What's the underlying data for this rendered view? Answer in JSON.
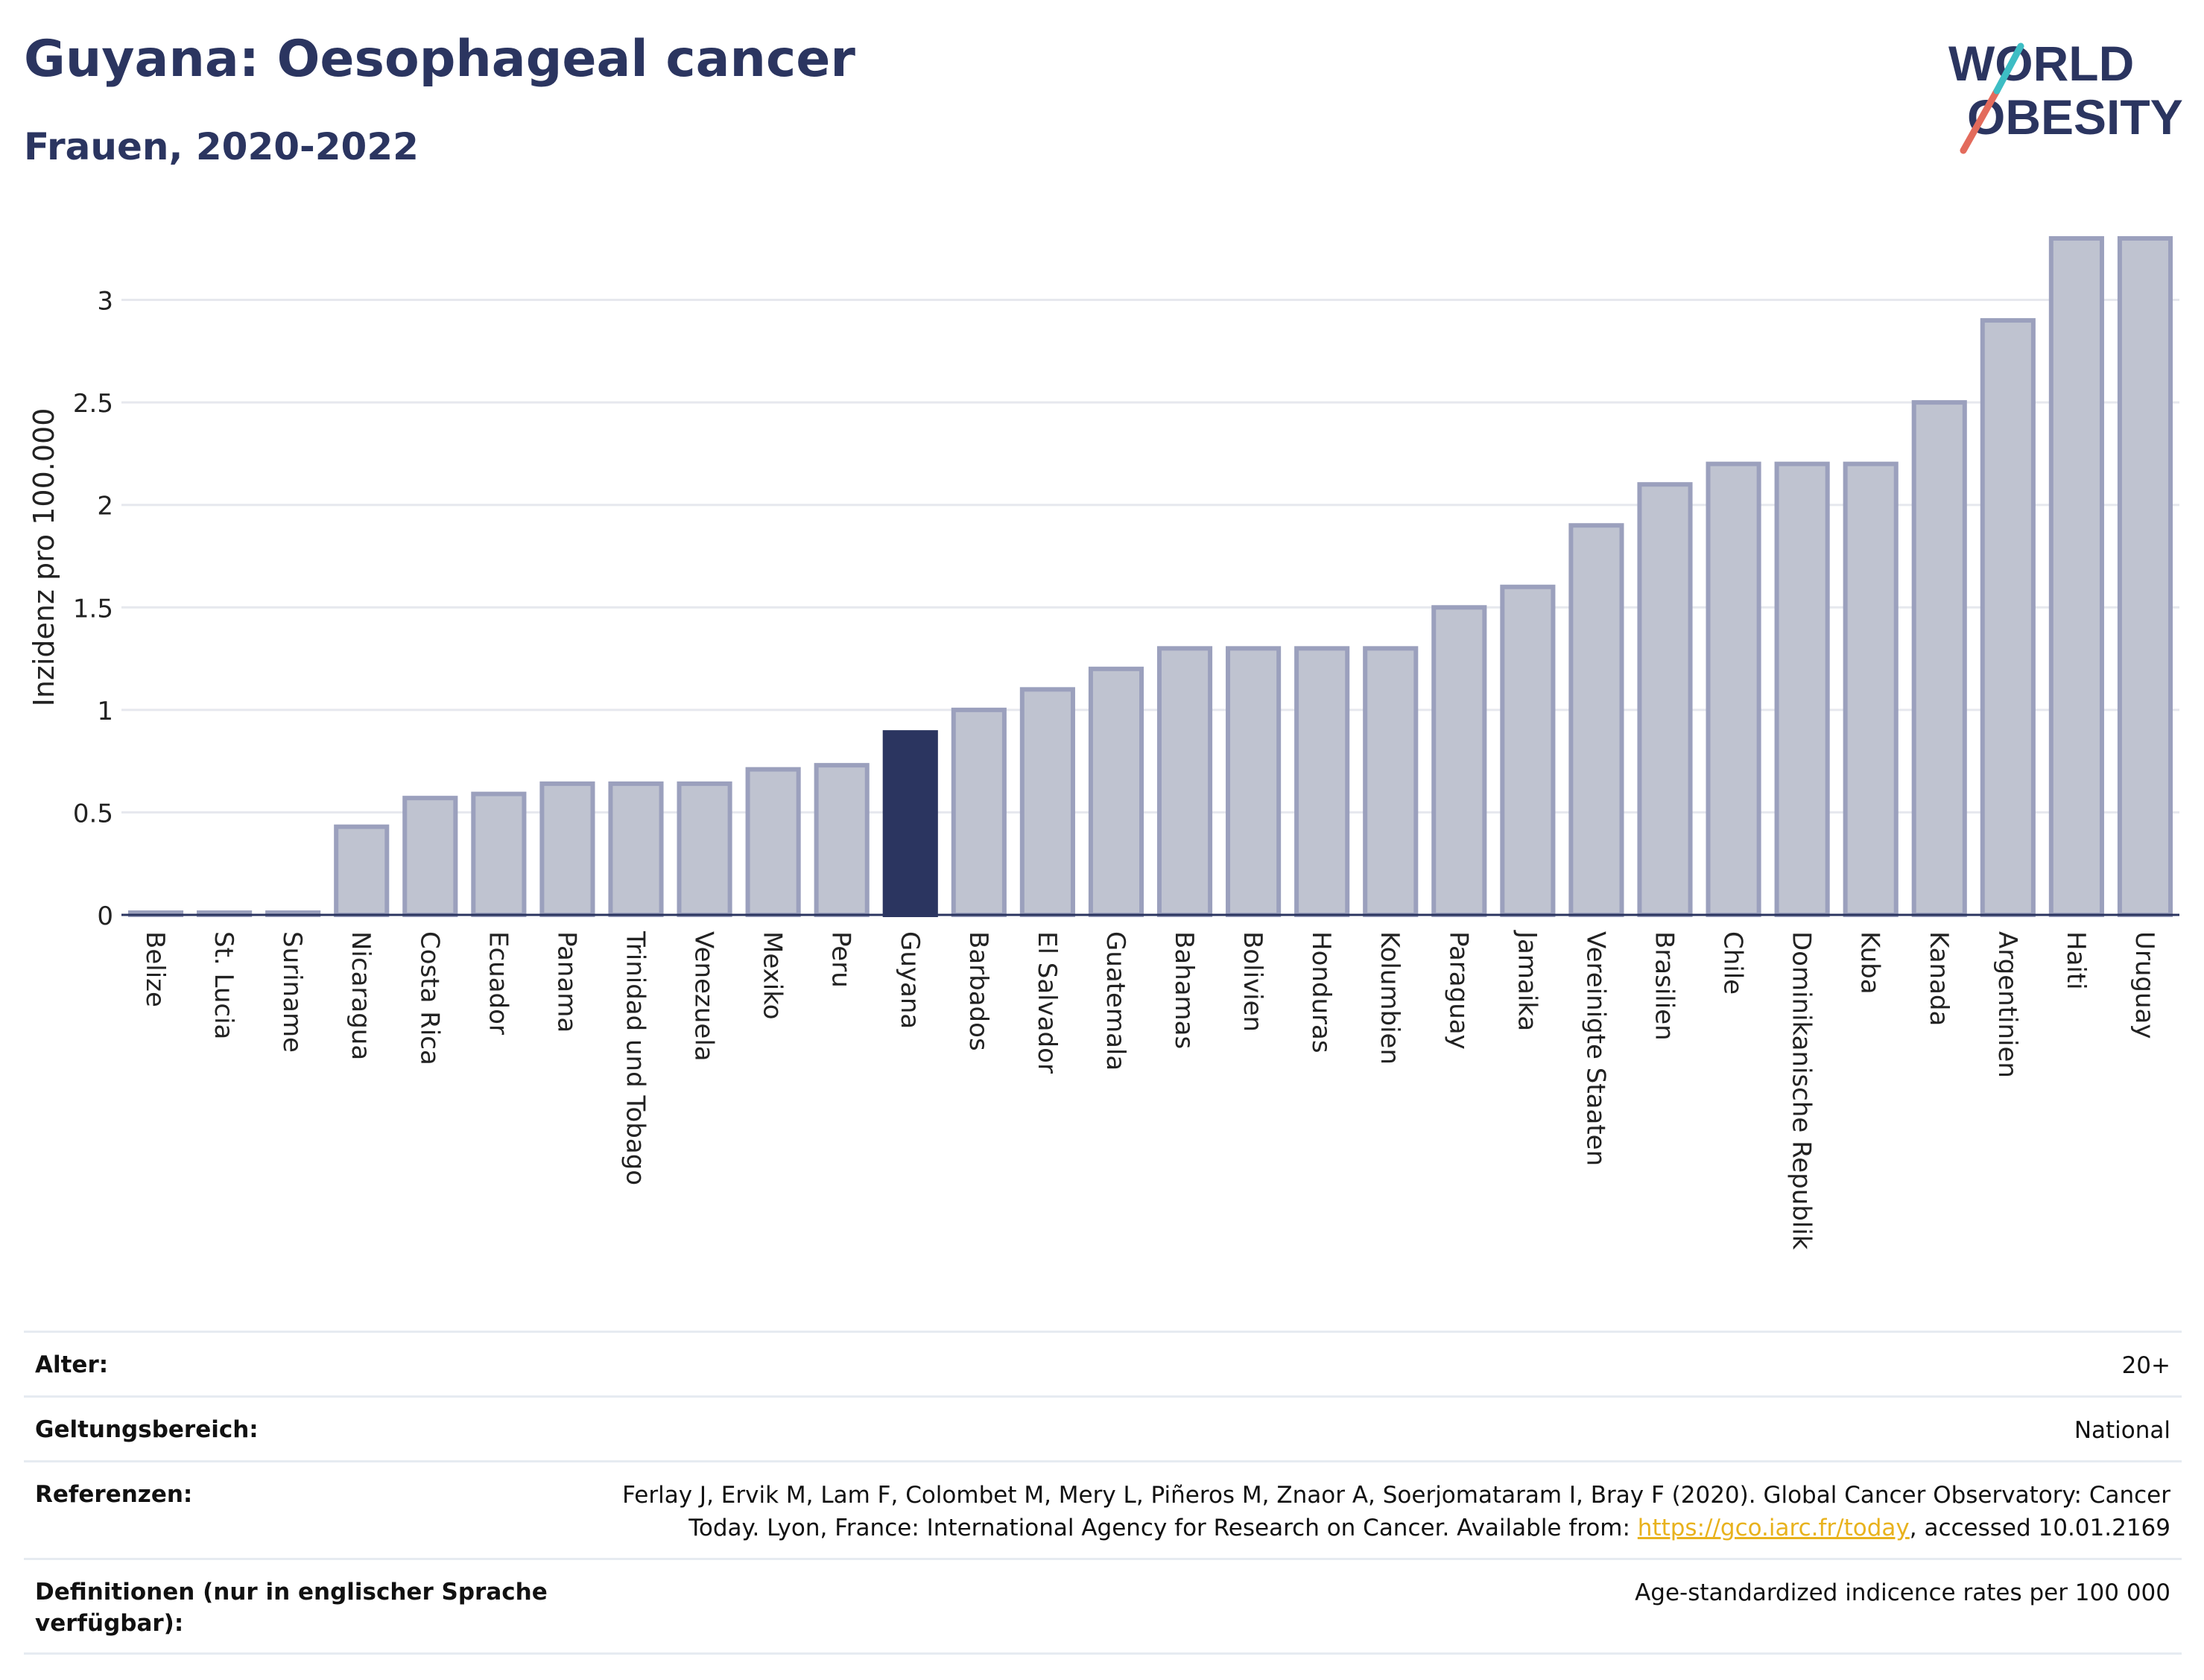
{
  "header": {
    "title": "Guyana: Oesophageal cancer",
    "subtitle": "Frauen, 2020-2022"
  },
  "logo": {
    "line1": "WORLD",
    "line2": "OBESITY"
  },
  "colors": {
    "bar": "#bfc3d0",
    "bar_border": "#9ba0bd",
    "highlight": "#2b3560",
    "grid": "#e6e8ee",
    "text": "#2b3560",
    "logo_teal": "#3dbdc4",
    "logo_red": "#e36b5c",
    "link": "#e8b21d"
  },
  "chart_data": {
    "type": "bar",
    "ylabel": "Inzidenz pro 100.000",
    "ylim": [
      0,
      3.3
    ],
    "yticks": [
      0,
      0.5,
      1,
      1.5,
      2,
      2.5,
      3
    ],
    "ytick_labels": [
      "0",
      "0.5",
      "1",
      "1.5",
      "2",
      "2.5",
      "3"
    ],
    "highlight": "Guyana",
    "grid": true,
    "categories": [
      "Belize",
      "St. Lucia",
      "Suriname",
      "Nicaragua",
      "Costa Rica",
      "Ecuador",
      "Panama",
      "Trinidad und Tobago",
      "Venezuela",
      "Mexiko",
      "Peru",
      "Guyana",
      "Barbados",
      "El Salvador",
      "Guatemala",
      "Bahamas",
      "Bolivien",
      "Honduras",
      "Kolumbien",
      "Paraguay",
      "Jamaika",
      "Vereinigte Staaten",
      "Brasilien",
      "Chile",
      "Dominikanische Republik",
      "Kuba",
      "Kanada",
      "Argentinien",
      "Haiti",
      "Uruguay"
    ],
    "values": [
      0.01,
      0.01,
      0.01,
      0.43,
      0.57,
      0.59,
      0.64,
      0.64,
      0.64,
      0.71,
      0.73,
      0.89,
      1.0,
      1.1,
      1.2,
      1.3,
      1.3,
      1.3,
      1.3,
      1.5,
      1.6,
      1.9,
      2.1,
      2.2,
      2.2,
      2.2,
      2.5,
      2.9,
      3.3,
      3.3
    ]
  },
  "meta": {
    "age_label": "Alter:",
    "age_value": "20+",
    "scope_label": "Geltungsbereich:",
    "scope_value": "National",
    "ref_label": "Referenzen:",
    "ref_text_1": "Ferlay J, Ervik M, Lam F, Colombet M, Mery L, Piñeros M, Znaor A, Soerjomataram I, Bray F (2020). Global Cancer Observatory: Cancer",
    "ref_text_2": "Today. Lyon, France: International Agency for Research on Cancer. Available from: ",
    "ref_link": "https://gco.iarc.fr/today",
    "ref_text_3": ", accessed 10.01.2169",
    "def_label": "Definitionen (nur in englischer Sprache verfügbar):",
    "def_value": "Age-standardized indicence rates per 100 000"
  }
}
